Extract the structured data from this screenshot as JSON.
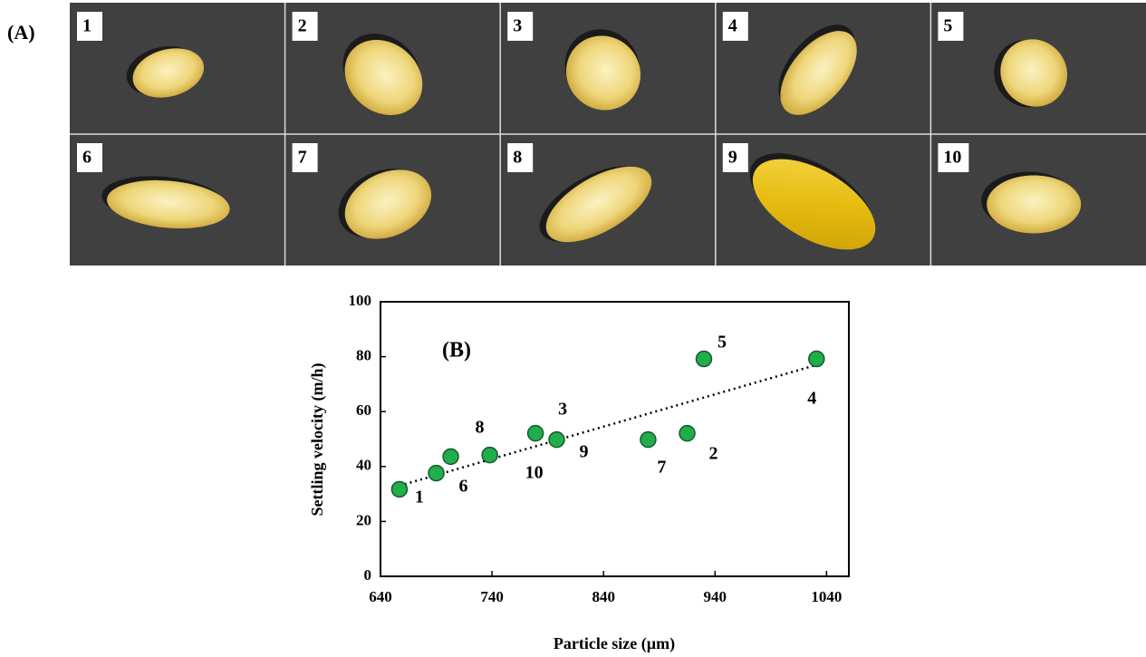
{
  "panel_a": {
    "label": "(A)",
    "images": [
      "1",
      "2",
      "3",
      "4",
      "5",
      "6",
      "7",
      "8",
      "9",
      "10"
    ]
  },
  "chart_data": {
    "type": "scatter",
    "panel_label": "(B)",
    "x_label": "Particle size (µm)",
    "y_label": "Settling velocity (m/h)",
    "x": [
      657,
      690,
      703,
      738,
      779,
      798,
      880,
      915,
      930,
      1031
    ],
    "values": [
      31.7,
      37.6,
      43.6,
      44.2,
      52.1,
      49.8,
      49.8,
      52.1,
      79.2,
      79.2
    ],
    "point_labels": [
      "1",
      "6",
      "8",
      "10",
      "3",
      "9",
      "7",
      "2",
      "5",
      "4"
    ],
    "color": "#1fae4b",
    "trendline": {
      "x": [
        657,
        1031
      ],
      "y": [
        33,
        77
      ]
    },
    "xlim": [
      640,
      1060
    ],
    "xticks": [
      640,
      740,
      840,
      940,
      1040
    ],
    "ylim": [
      0,
      100
    ],
    "yticks": [
      0,
      20,
      40,
      60,
      80,
      100
    ]
  }
}
